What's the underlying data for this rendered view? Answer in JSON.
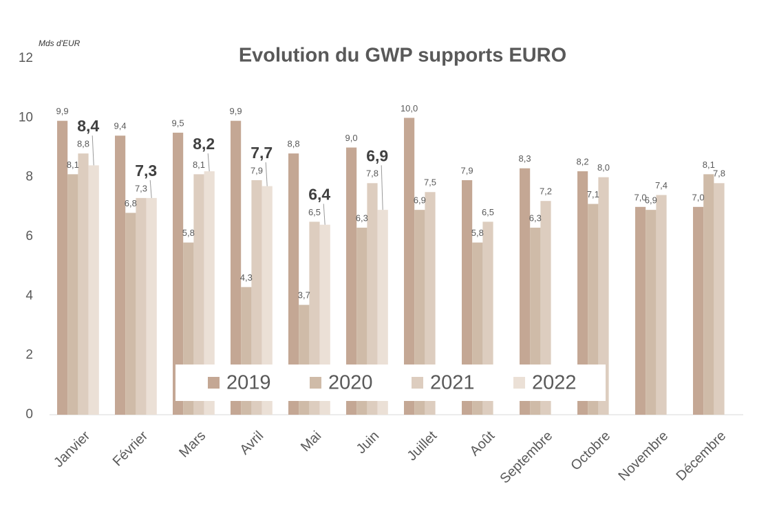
{
  "chart_data": {
    "type": "bar",
    "title": "Evolution du GWP supports EURO",
    "y_label": "Mds d'EUR",
    "categories": [
      "Janvier",
      "Février",
      "Mars",
      "Avril",
      "Mai",
      "Juin",
      "Juillet",
      "Août",
      "Septembre",
      "Octobre",
      "Novembre",
      "Décembre"
    ],
    "series": [
      {
        "name": "2019",
        "color": "#c4a794",
        "values": [
          9.9,
          9.4,
          9.5,
          9.9,
          8.8,
          9.0,
          10.0,
          7.9,
          8.3,
          8.2,
          7.0,
          7.0
        ],
        "value_labels": [
          "9,9",
          "9,4",
          "9,5",
          "9,9",
          "8,8",
          "9,0",
          "10,0",
          "7,9",
          "8,3",
          "8,2",
          "7,0",
          "7,0"
        ]
      },
      {
        "name": "2020",
        "color": "#cfbba8",
        "values": [
          8.1,
          6.8,
          5.8,
          4.3,
          3.7,
          6.3,
          6.9,
          5.8,
          6.3,
          7.1,
          6.9,
          8.1
        ],
        "value_labels": [
          "8,1",
          "6,8",
          "5,8",
          "4,3",
          "3,7",
          "6,3",
          "6,9",
          "5,8",
          "6,3",
          "7,1",
          "6,9",
          "8,1"
        ]
      },
      {
        "name": "2021",
        "color": "#ddcdbf",
        "values": [
          8.8,
          7.3,
          8.1,
          7.9,
          6.5,
          7.8,
          7.5,
          6.5,
          7.2,
          8.0,
          7.4,
          7.8
        ],
        "value_labels": [
          "8,8",
          "7,3",
          "8,1",
          "7,9",
          "6,5",
          "7,8",
          "7,5",
          "6,5",
          "7,2",
          "8,0",
          "7,4",
          "7,8"
        ]
      },
      {
        "name": "2022",
        "color": "#ebe0d6",
        "values": [
          8.4,
          7.3,
          8.2,
          7.7,
          6.4,
          6.9,
          null,
          null,
          null,
          null,
          null,
          null
        ],
        "value_labels": [
          "8,4",
          "7,3",
          "8,2",
          "7,7",
          "6,4",
          "6,9",
          null,
          null,
          null,
          null,
          null,
          null
        ]
      }
    ],
    "ylim": [
      0,
      12
    ],
    "yticks": [
      0,
      2,
      4,
      6,
      8,
      10,
      12
    ],
    "grid": false,
    "legend_position": "bottom"
  }
}
